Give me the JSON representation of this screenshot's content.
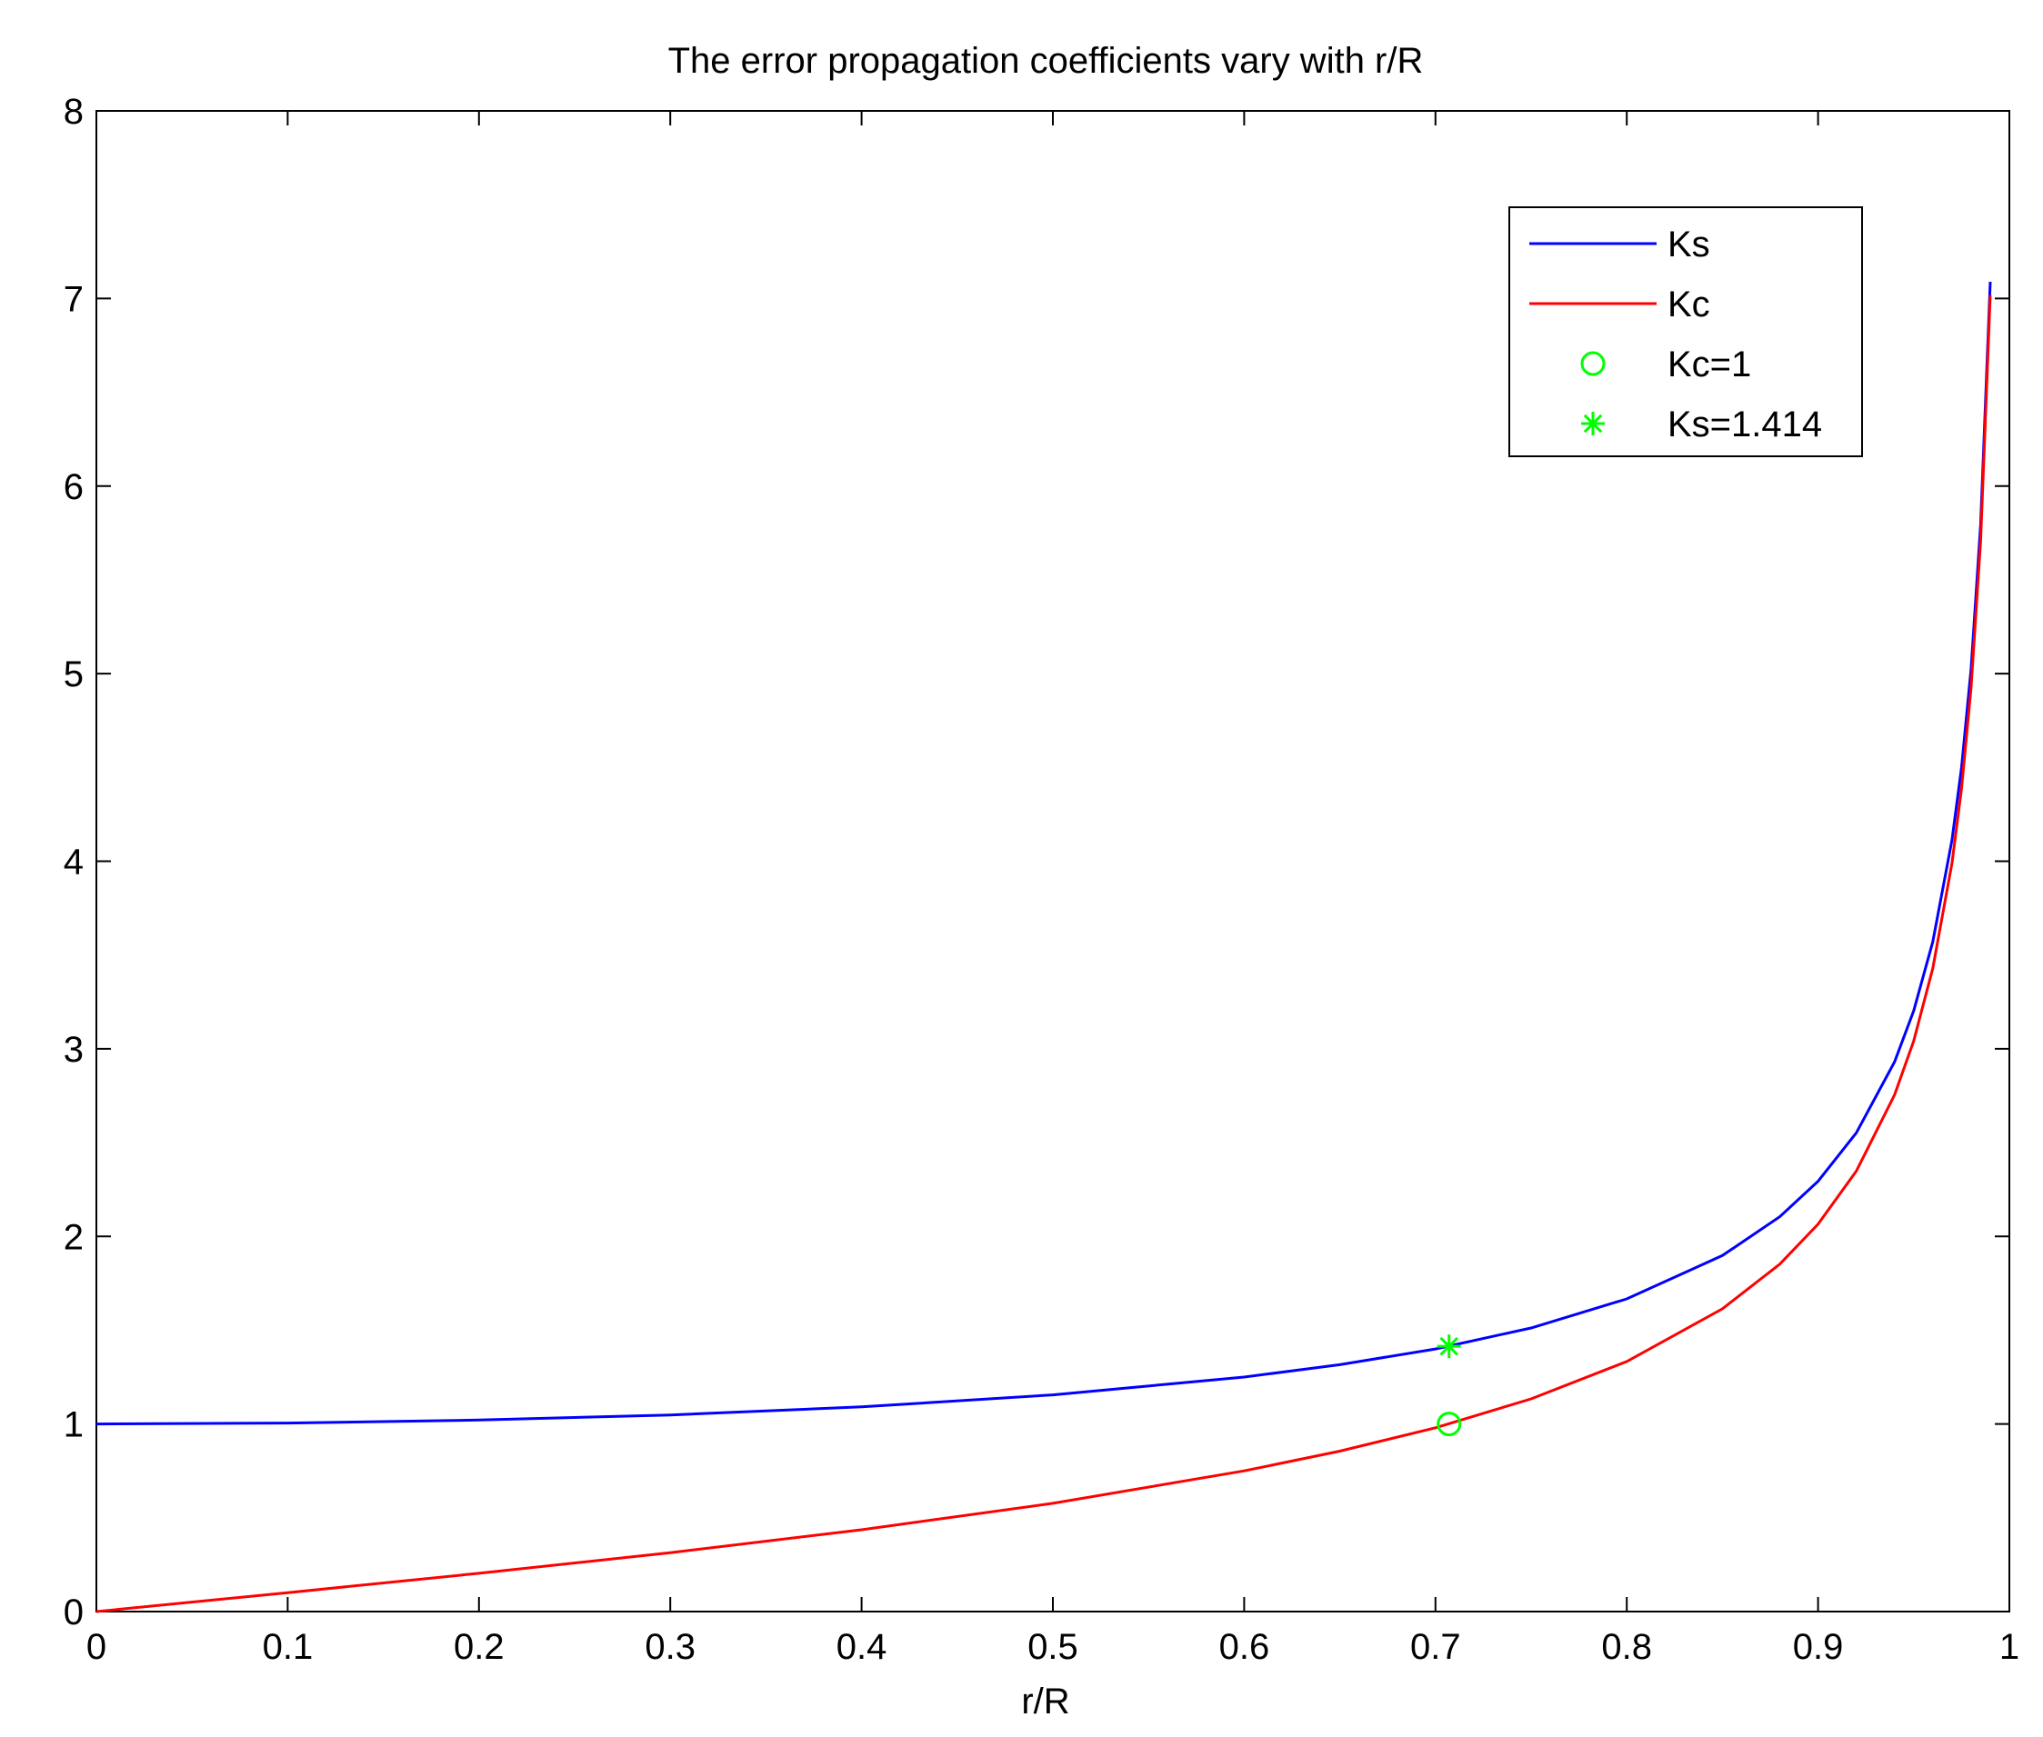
{
  "chart_data": {
    "type": "line",
    "title": "The error propagation coefficients vary with r/R",
    "xlabel": "r/R",
    "ylabel": "",
    "xlim": [
      0,
      1
    ],
    "ylim": [
      0,
      8
    ],
    "x_ticks": [
      0,
      0.1,
      0.2,
      0.3,
      0.4,
      0.5,
      0.6,
      0.7,
      0.8,
      0.9,
      1
    ],
    "x_tick_labels": [
      "0",
      "0.1",
      "0.2",
      "0.3",
      "0.4",
      "0.5",
      "0.6",
      "0.7",
      "0.8",
      "0.9",
      "1"
    ],
    "y_ticks": [
      0,
      1,
      2,
      3,
      4,
      5,
      6,
      7,
      8
    ],
    "y_tick_labels": [
      "0",
      "1",
      "2",
      "3",
      "4",
      "5",
      "6",
      "7",
      "8"
    ],
    "grid": false,
    "legend_position": "top-right",
    "x": [
      0,
      0.1,
      0.2,
      0.3,
      0.4,
      0.5,
      0.6,
      0.65,
      0.7,
      0.75,
      0.8,
      0.85,
      0.88,
      0.9,
      0.92,
      0.94,
      0.95,
      0.96,
      0.97,
      0.975,
      0.98,
      0.985,
      0.99
    ],
    "series": [
      {
        "name": "Ks",
        "color": "#0000ff",
        "kind": "line",
        "values": [
          1.0,
          1.005,
          1.021,
          1.048,
          1.091,
          1.155,
          1.25,
          1.316,
          1.4,
          1.512,
          1.667,
          1.898,
          2.105,
          2.294,
          2.552,
          2.931,
          3.203,
          3.571,
          4.113,
          4.5,
          5.025,
          5.795,
          7.089
        ]
      },
      {
        "name": "Kc",
        "color": "#ff0000",
        "kind": "line",
        "values": [
          0.0,
          0.101,
          0.204,
          0.314,
          0.436,
          0.577,
          0.75,
          0.855,
          0.98,
          1.134,
          1.333,
          1.614,
          1.852,
          2.065,
          2.348,
          2.755,
          3.042,
          3.429,
          3.99,
          4.387,
          4.925,
          5.708,
          7.018
        ]
      },
      {
        "name": "Kc=1",
        "color": "#00ff00",
        "kind": "marker",
        "marker": "circle",
        "x": 0.7071,
        "y": 1.0
      },
      {
        "name": "Ks=1.414",
        "color": "#00ff00",
        "kind": "marker",
        "marker": "star",
        "x": 0.7071,
        "y": 1.414
      }
    ]
  }
}
